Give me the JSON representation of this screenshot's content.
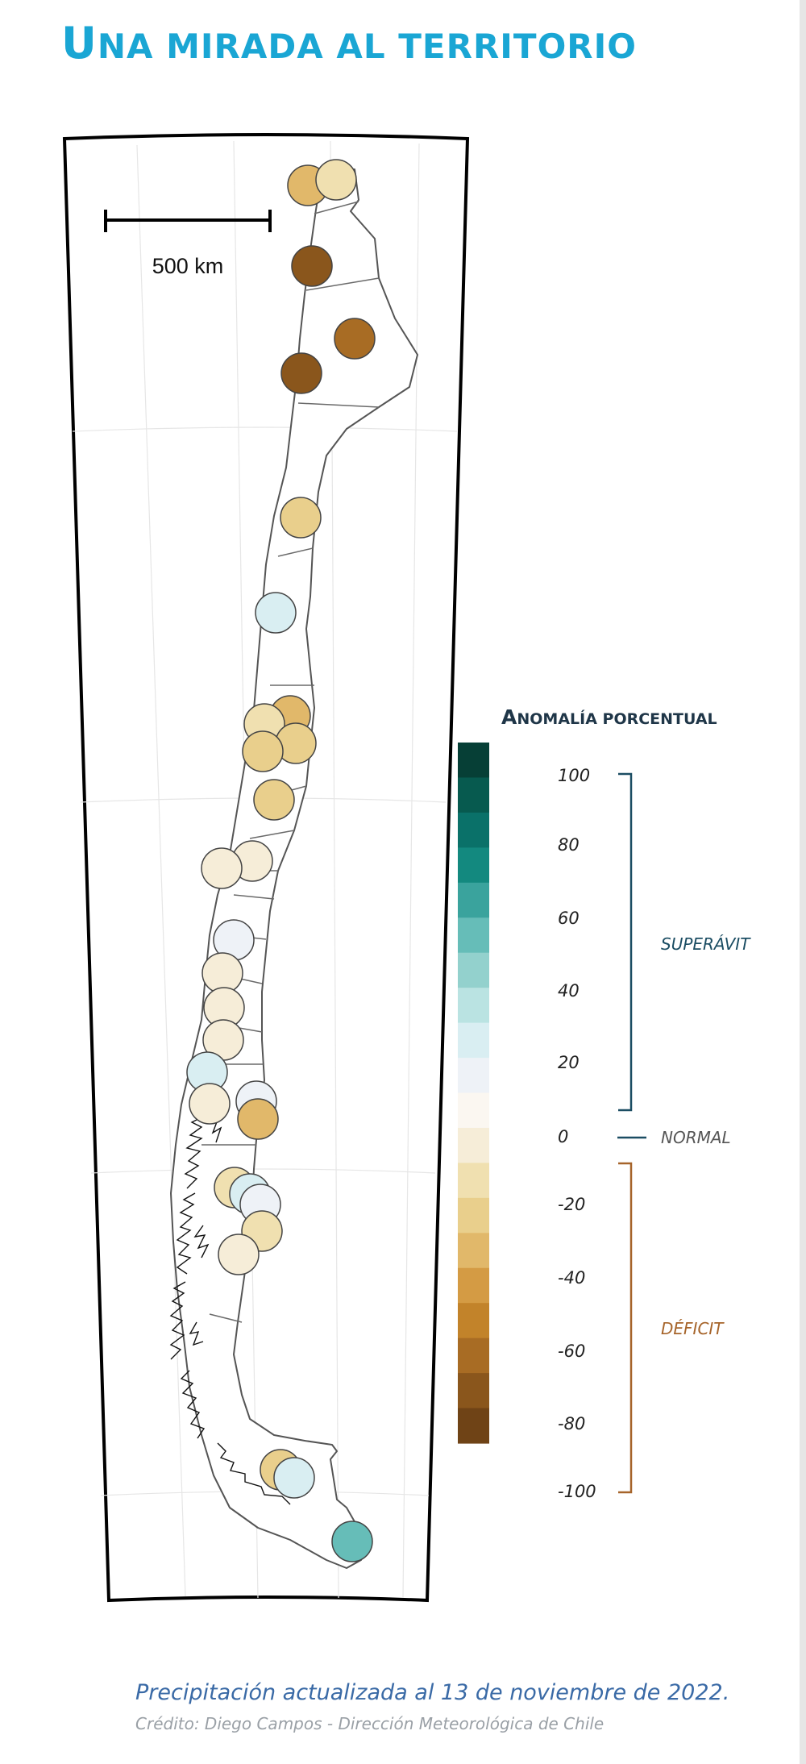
{
  "title": {
    "first": "U",
    "rest": "NA MIRADA AL TERRITORIO"
  },
  "scale_bar": {
    "label": "500 km"
  },
  "legend": {
    "title_first": "A",
    "title_rest": "NOMALÍA PORCENTUAL",
    "ticks": [
      "100",
      "80",
      "60",
      "40",
      "20",
      "0",
      "-20",
      "-40",
      "-60",
      "-80",
      "-100"
    ],
    "categories": {
      "surplus": "SUPERÁVIT",
      "normal": "NORMAL",
      "deficit": "DÉFICIT"
    },
    "colors": [
      "#063f36",
      "#075a4f",
      "#0a7169",
      "#13897f",
      "#3aa39d",
      "#66bdb8",
      "#93d1cd",
      "#bae3e2",
      "#d9eef2",
      "#eef2f7",
      "#fbf7f1",
      "#f6edd8",
      "#f0e0b0",
      "#e9cf8c",
      "#e1b86a",
      "#d49b44",
      "#c2832a",
      "#a86c24",
      "#8a561c",
      "#6f4316"
    ],
    "surplus_color": "#1b4d63",
    "deficit_color": "#a6642a"
  },
  "map_data": {
    "type": "map",
    "region": "Chile",
    "variable": "Anomalía porcentual de precipitación",
    "stations": [
      {
        "anomaly": -45
      },
      {
        "anomaly": -20
      },
      {
        "anomaly": -85
      },
      {
        "anomaly": -75
      },
      {
        "anomaly": -85
      },
      {
        "anomaly": -30
      },
      {
        "anomaly": 15
      },
      {
        "anomaly": -45
      },
      {
        "anomaly": -20
      },
      {
        "anomaly": -30
      },
      {
        "anomaly": -30
      },
      {
        "anomaly": -30
      },
      {
        "anomaly": -15
      },
      {
        "anomaly": -10
      },
      {
        "anomaly": 5
      },
      {
        "anomaly": -10
      },
      {
        "anomaly": -10
      },
      {
        "anomaly": -10
      },
      {
        "anomaly": 15
      },
      {
        "anomaly": -10
      },
      {
        "anomaly": 5
      },
      {
        "anomaly": -45
      },
      {
        "anomaly": -25
      },
      {
        "anomaly": 15
      },
      {
        "anomaly": 5
      },
      {
        "anomaly": -25
      },
      {
        "anomaly": -10
      },
      {
        "anomaly": -30
      },
      {
        "anomaly": 15
      },
      {
        "anomaly": 50
      }
    ]
  },
  "caption": "Precipitación actualizada al 13 de noviembre de 2022.",
  "credit": "Crédito: Diego Campos - Dirección Meteorológica de Chile"
}
